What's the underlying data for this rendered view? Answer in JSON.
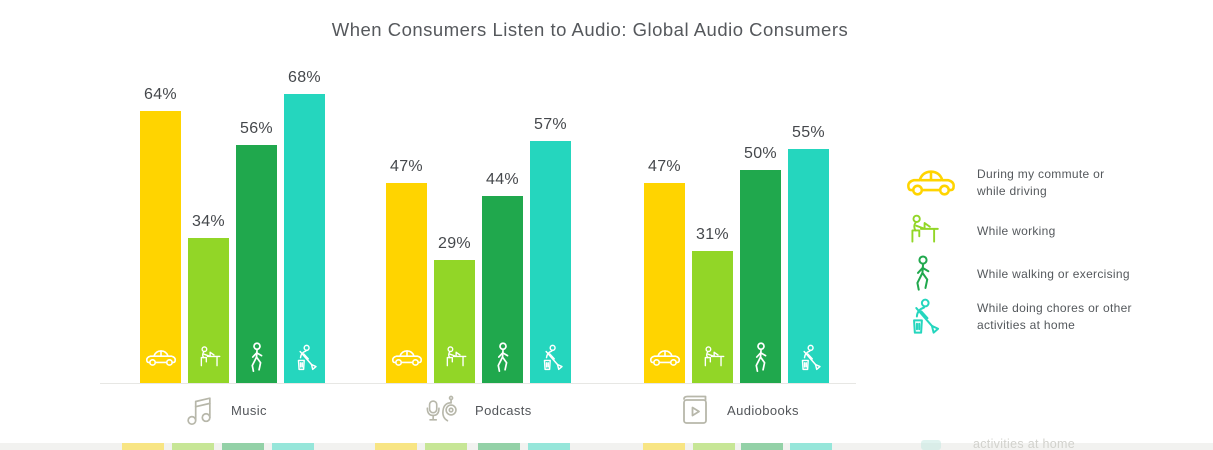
{
  "title": "When Consumers Listen to Audio: Global Audio Consumers",
  "chart_data": {
    "type": "bar",
    "title": "When Consumers Listen to Audio: Global Audio Consumers",
    "categories": [
      "Music",
      "Podcasts",
      "Audiobooks"
    ],
    "series": [
      {
        "name": "During my commute or while driving",
        "legend_lines": [
          "During my commute or",
          "while driving"
        ],
        "values": [
          64,
          47,
          47
        ],
        "color": "#FFD400",
        "icon": "car-icon"
      },
      {
        "name": "While working",
        "legend_lines": [
          "While working"
        ],
        "values": [
          34,
          29,
          31
        ],
        "color": "#92D627",
        "icon": "working-icon"
      },
      {
        "name": "While walking or exercising",
        "legend_lines": [
          "While walking or exercising"
        ],
        "values": [
          56,
          44,
          50
        ],
        "color": "#20A84D",
        "icon": "walking-icon"
      },
      {
        "name": "While doing chores or other activities at home",
        "legend_lines": [
          "While doing chores or other",
          "activities at home"
        ],
        "values": [
          68,
          57,
          55
        ],
        "color": "#25D6BE",
        "icon": "chores-icon"
      }
    ],
    "value_suffix": "%",
    "data_labels": true,
    "ylim": [
      0,
      100
    ],
    "grid": false,
    "legend_position": "right"
  },
  "category_icons": [
    "music-note-icon",
    "podcast-icon",
    "audiobook-icon"
  ],
  "footer_peek": {
    "text": "activities at home"
  }
}
